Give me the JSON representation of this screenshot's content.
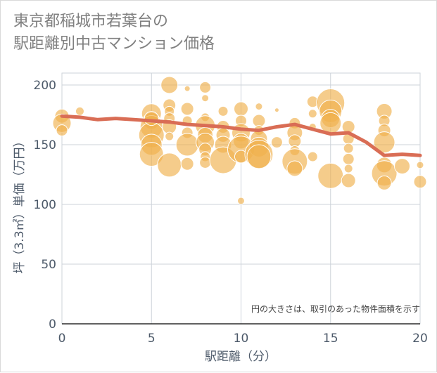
{
  "chart_data": {
    "type": "scatter",
    "title": "東京都稲城市若葉台の\n駅距離別中古マンション価格",
    "xlabel": "駅距離（分）",
    "ylabel": "坪（3.3㎡）単価（万円）",
    "note": "円の大きさは、取引のあった物件面積を示す",
    "xlim": [
      0,
      20
    ],
    "ylim": [
      0,
      210
    ],
    "x_ticks": [
      0,
      5,
      10,
      15,
      20
    ],
    "y_ticks": [
      0,
      50,
      100,
      150,
      200
    ],
    "grid": true,
    "colors": {
      "bubble": "#f0b14d",
      "trend": "#d96d55",
      "grid": "#cdd3da",
      "text": "#4d5a6a"
    },
    "trend_line": {
      "x": [
        0,
        1,
        2,
        3,
        4,
        5,
        6,
        7,
        8,
        9,
        10,
        11,
        12,
        13,
        14,
        15,
        16,
        17,
        18,
        19,
        20
      ],
      "y": [
        174,
        173,
        171,
        172,
        171,
        170,
        169,
        167,
        166,
        165,
        163,
        162,
        165,
        167,
        163,
        159,
        160,
        152,
        141,
        142,
        141
      ]
    },
    "points": [
      {
        "x": 0,
        "y": 174,
        "s": 10
      },
      {
        "x": 0,
        "y": 168,
        "s": 13
      },
      {
        "x": 0,
        "y": 162,
        "s": 8
      },
      {
        "x": 1,
        "y": 178,
        "s": 6
      },
      {
        "x": 5,
        "y": 176,
        "s": 14
      },
      {
        "x": 5,
        "y": 170,
        "s": 12
      },
      {
        "x": 5,
        "y": 165,
        "s": 16
      },
      {
        "x": 5,
        "y": 158,
        "s": 18
      },
      {
        "x": 5,
        "y": 150,
        "s": 15
      },
      {
        "x": 5,
        "y": 142,
        "s": 17
      },
      {
        "x": 5,
        "y": 172,
        "s": 10
      },
      {
        "x": 6,
        "y": 200,
        "s": 12
      },
      {
        "x": 6,
        "y": 183,
        "s": 9
      },
      {
        "x": 6,
        "y": 178,
        "s": 7
      },
      {
        "x": 6,
        "y": 172,
        "s": 8
      },
      {
        "x": 6,
        "y": 165,
        "s": 10
      },
      {
        "x": 6,
        "y": 157,
        "s": 6
      },
      {
        "x": 6,
        "y": 133,
        "s": 17
      },
      {
        "x": 7,
        "y": 197,
        "s": 4
      },
      {
        "x": 7,
        "y": 180,
        "s": 9
      },
      {
        "x": 7,
        "y": 170,
        "s": 7
      },
      {
        "x": 7,
        "y": 160,
        "s": 8
      },
      {
        "x": 7,
        "y": 150,
        "s": 16
      },
      {
        "x": 7,
        "y": 134,
        "s": 9
      },
      {
        "x": 8,
        "y": 198,
        "s": 8
      },
      {
        "x": 8,
        "y": 189,
        "s": 5
      },
      {
        "x": 8,
        "y": 173,
        "s": 6
      },
      {
        "x": 8,
        "y": 166,
        "s": 14
      },
      {
        "x": 8,
        "y": 158,
        "s": 11
      },
      {
        "x": 8,
        "y": 152,
        "s": 13
      },
      {
        "x": 8,
        "y": 146,
        "s": 9
      },
      {
        "x": 8,
        "y": 140,
        "s": 7
      },
      {
        "x": 8,
        "y": 135,
        "s": 8
      },
      {
        "x": 9,
        "y": 178,
        "s": 7
      },
      {
        "x": 9,
        "y": 165,
        "s": 9
      },
      {
        "x": 9,
        "y": 158,
        "s": 10
      },
      {
        "x": 9,
        "y": 150,
        "s": 12
      },
      {
        "x": 9,
        "y": 137,
        "s": 19
      },
      {
        "x": 10,
        "y": 180,
        "s": 10
      },
      {
        "x": 10,
        "y": 170,
        "s": 8
      },
      {
        "x": 10,
        "y": 160,
        "s": 13
      },
      {
        "x": 10,
        "y": 153,
        "s": 11
      },
      {
        "x": 10,
        "y": 146,
        "s": 19
      },
      {
        "x": 10,
        "y": 140,
        "s": 9
      },
      {
        "x": 10,
        "y": 103,
        "s": 5
      },
      {
        "x": 11,
        "y": 182,
        "s": 5
      },
      {
        "x": 11,
        "y": 170,
        "s": 9
      },
      {
        "x": 11,
        "y": 162,
        "s": 7
      },
      {
        "x": 11,
        "y": 155,
        "s": 12
      },
      {
        "x": 11,
        "y": 148,
        "s": 14
      },
      {
        "x": 11,
        "y": 142,
        "s": 20
      },
      {
        "x": 11,
        "y": 140,
        "s": 17
      },
      {
        "x": 12,
        "y": 179,
        "s": 3
      },
      {
        "x": 12,
        "y": 152,
        "s": 8
      },
      {
        "x": 13,
        "y": 168,
        "s": 8
      },
      {
        "x": 13,
        "y": 160,
        "s": 11
      },
      {
        "x": 13,
        "y": 153,
        "s": 9
      },
      {
        "x": 13,
        "y": 145,
        "s": 7
      },
      {
        "x": 13,
        "y": 136,
        "s": 18
      },
      {
        "x": 13,
        "y": 130,
        "s": 11
      },
      {
        "x": 14,
        "y": 186,
        "s": 8
      },
      {
        "x": 14,
        "y": 176,
        "s": 6
      },
      {
        "x": 14,
        "y": 165,
        "s": 5
      },
      {
        "x": 14,
        "y": 140,
        "s": 7
      },
      {
        "x": 15,
        "y": 185,
        "s": 20
      },
      {
        "x": 15,
        "y": 178,
        "s": 16
      },
      {
        "x": 15,
        "y": 172,
        "s": 13
      },
      {
        "x": 15,
        "y": 168,
        "s": 15
      },
      {
        "x": 15,
        "y": 124,
        "s": 18
      },
      {
        "x": 16,
        "y": 165,
        "s": 9
      },
      {
        "x": 16,
        "y": 155,
        "s": 8
      },
      {
        "x": 16,
        "y": 147,
        "s": 7
      },
      {
        "x": 16,
        "y": 138,
        "s": 8
      },
      {
        "x": 16,
        "y": 130,
        "s": 6
      },
      {
        "x": 16,
        "y": 120,
        "s": 10
      },
      {
        "x": 18,
        "y": 178,
        "s": 11
      },
      {
        "x": 18,
        "y": 170,
        "s": 8
      },
      {
        "x": 18,
        "y": 162,
        "s": 9
      },
      {
        "x": 18,
        "y": 152,
        "s": 15
      },
      {
        "x": 18,
        "y": 133,
        "s": 11
      },
      {
        "x": 18,
        "y": 126,
        "s": 18
      },
      {
        "x": 18,
        "y": 118,
        "s": 10
      },
      {
        "x": 19,
        "y": 132,
        "s": 11
      },
      {
        "x": 20,
        "y": 133,
        "s": 5
      },
      {
        "x": 20,
        "y": 119,
        "s": 9
      }
    ]
  }
}
